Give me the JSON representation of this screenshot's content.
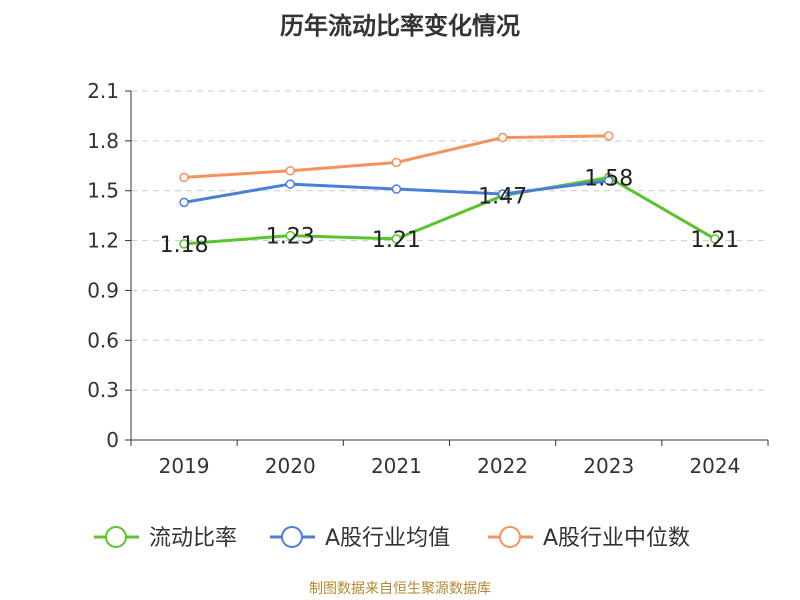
{
  "title": "历年流动比率变化情况",
  "source": "制图数据来自恒生聚源数据库",
  "chart_data": {
    "type": "line",
    "title": "历年流动比率变化情况",
    "categories": [
      "2019",
      "2020",
      "2021",
      "2022",
      "2023",
      "2024"
    ],
    "ylim": [
      0,
      2.1
    ],
    "yticks": [
      "0",
      "0.3",
      "0.6",
      "0.9",
      "1.2",
      "1.5",
      "1.8",
      "2.1"
    ],
    "grid": true,
    "legend_position": "bottom",
    "series": [
      {
        "name": "流动比率",
        "color": "#5ac42d",
        "values": [
          1.18,
          1.23,
          1.21,
          1.47,
          1.58,
          1.21
        ],
        "labels": [
          "1.18",
          "1.23",
          "1.21",
          "1.47",
          "1.58",
          "1.21"
        ]
      },
      {
        "name": "A股行业均值",
        "color": "#4a7fd9",
        "values": [
          1.43,
          1.54,
          1.51,
          1.48,
          1.56,
          null
        ]
      },
      {
        "name": "A股行业中位数",
        "color": "#f5915c",
        "values": [
          1.58,
          1.62,
          1.67,
          1.82,
          1.83,
          null
        ]
      }
    ]
  }
}
